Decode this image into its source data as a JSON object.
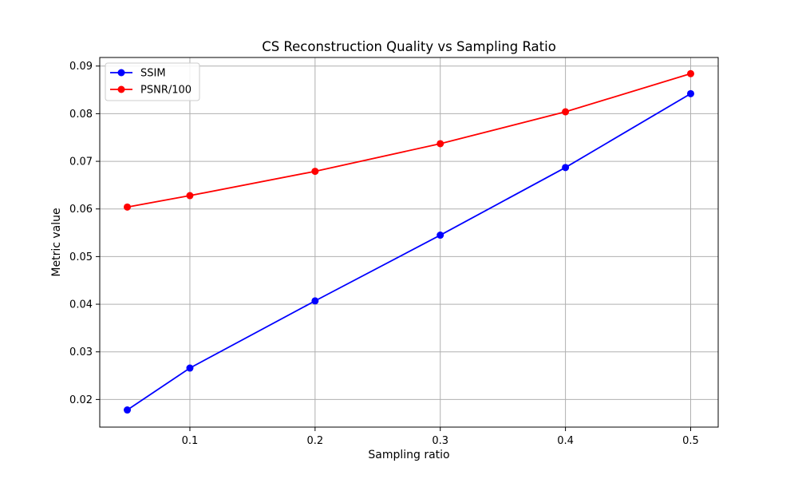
{
  "chart_data": {
    "type": "line",
    "title": "CS Reconstruction Quality vs Sampling Ratio",
    "xlabel": "Sampling ratio",
    "ylabel": "Metric value",
    "xlim": [
      0.028,
      0.522
    ],
    "ylim": [
      0.0142,
      0.0918
    ],
    "xticks": [
      0.1,
      0.2,
      0.3,
      0.4,
      0.5
    ],
    "xtick_labels": [
      "0.1",
      "0.2",
      "0.3",
      "0.4",
      "0.5"
    ],
    "yticks": [
      0.02,
      0.03,
      0.04,
      0.05,
      0.06,
      0.07,
      0.08,
      0.09
    ],
    "ytick_labels": [
      "0.02",
      "0.03",
      "0.04",
      "0.05",
      "0.06",
      "0.07",
      "0.08",
      "0.09"
    ],
    "grid": true,
    "legend_position": "top-left",
    "x": [
      0.05,
      0.1,
      0.2,
      0.3,
      0.4,
      0.5
    ],
    "series": [
      {
        "name": "SSIM",
        "color": "#0000ff",
        "marker": "circle",
        "values": [
          0.0178,
          0.0266,
          0.0407,
          0.0545,
          0.0687,
          0.0842
        ]
      },
      {
        "name": "PSNR/100",
        "color": "#ff0000",
        "marker": "circle",
        "values": [
          0.0604,
          0.0628,
          0.0679,
          0.0737,
          0.0804,
          0.0884
        ]
      }
    ]
  }
}
